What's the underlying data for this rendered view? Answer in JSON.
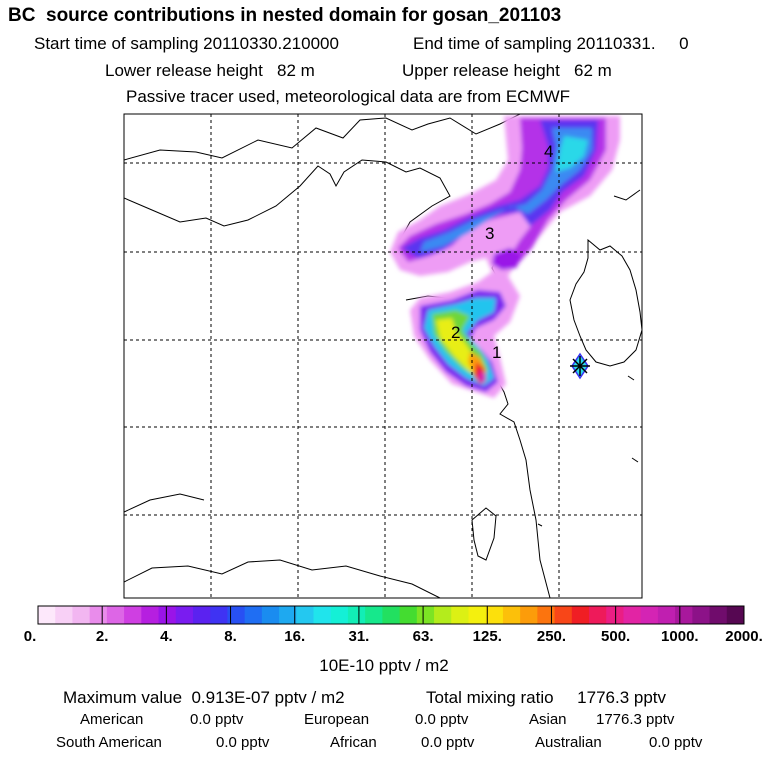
{
  "header": {
    "title": "BC  source contributions in nested domain for gosan_201103",
    "start_sampling": "Start time of sampling 20110330.210000",
    "end_sampling": "End time of sampling 20110331.     0",
    "lower_release": "Lower release height   82 m",
    "upper_release": "Upper release height   62 m",
    "note": "Passive tracer used, meteorological data are from ECMWF"
  },
  "map": {
    "markers": [
      {
        "label": "1"
      },
      {
        "label": "2"
      },
      {
        "label": "3"
      },
      {
        "label": "4"
      }
    ],
    "receptor": "gosan"
  },
  "colorbar": {
    "labels": [
      "0.",
      "2.",
      "4.",
      "8.",
      "16.",
      "31.",
      "63.",
      "125.",
      "250.",
      "500.",
      "1000.",
      "2000."
    ],
    "colors": [
      "#fde8fb",
      "#f8d0f6",
      "#f2b6f1",
      "#e98ceb",
      "#dd66e6",
      "#cf3fe2",
      "#b61fe0",
      "#9a14e8",
      "#7a1cf0",
      "#5b22f0",
      "#3f33f3",
      "#2850f3",
      "#1f6ef3",
      "#1a8cf0",
      "#1ea9f0",
      "#24c8f0",
      "#20e4ec",
      "#14f0d6",
      "#12eeb6",
      "#16e88c",
      "#22e060",
      "#44dc30",
      "#7ce424",
      "#b4ec1c",
      "#dcf014",
      "#f4f00e",
      "#fce00c",
      "#fcc00a",
      "#fc9c0a",
      "#fc740e",
      "#f84618",
      "#f01e24",
      "#ee1a5a",
      "#ea1e84",
      "#e224a4",
      "#d424b4",
      "#c01fb0",
      "#a8189c",
      "#8c1288",
      "#700c6c",
      "#560752"
    ],
    "units": "10E-10 pptv / m2"
  },
  "stats": {
    "max_label": "Maximum value  0.913E-07 pptv / m2",
    "total_label": "Total mixing ratio     1776.3 pptv",
    "row1": [
      {
        "name": "American",
        "value": "0.0 pptv"
      },
      {
        "name": "European",
        "value": "0.0 pptv"
      },
      {
        "name": "Asian",
        "value": "1776.3 pptv"
      }
    ],
    "row2": [
      {
        "name": "South American",
        "value": "0.0 pptv"
      },
      {
        "name": "African",
        "value": "0.0 pptv"
      },
      {
        "name": "Australian",
        "value": "0.0 pptv"
      }
    ]
  }
}
